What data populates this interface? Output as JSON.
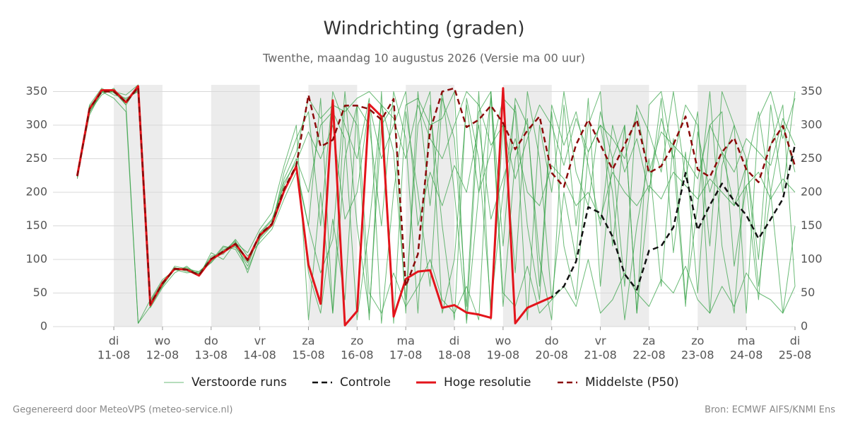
{
  "chart_data": {
    "type": "line",
    "title": "Windrichting (graden)",
    "subtitle": "Twenthe, maandag 10 augustus 2026 (Versie ma 00 uur)",
    "footer": "Gegenereerd door MeteoVPS (meteo-service.nl)",
    "source": "Bron: ECMWF AIFS/KNMI Ens",
    "xlim": [
      -0.25,
      15
    ],
    "xticks": [
      {
        "value": 1,
        "label": "11-08",
        "weekday": "di"
      },
      {
        "value": 2,
        "label": "12-08",
        "weekday": "wo"
      },
      {
        "value": 3,
        "label": "13-08",
        "weekday": "do"
      },
      {
        "value": 4,
        "label": "14-08",
        "weekday": "vr"
      },
      {
        "value": 5,
        "label": "15-08",
        "weekday": "za"
      },
      {
        "value": 6,
        "label": "16-08",
        "weekday": "zo"
      },
      {
        "value": 7,
        "label": "17-08",
        "weekday": "ma"
      },
      {
        "value": 8,
        "label": "18-08",
        "weekday": "di"
      },
      {
        "value": 9,
        "label": "19-08",
        "weekday": "wo"
      },
      {
        "value": 10,
        "label": "20-08",
        "weekday": "do"
      },
      {
        "value": 11,
        "label": "21-08",
        "weekday": "vr"
      },
      {
        "value": 12,
        "label": "22-08",
        "weekday": "za"
      },
      {
        "value": 13,
        "label": "23-08",
        "weekday": "zo"
      },
      {
        "value": 14,
        "label": "24-08",
        "weekday": "ma"
      },
      {
        "value": 15,
        "label": "25-08",
        "weekday": "di"
      }
    ],
    "ylim": [
      0,
      360
    ],
    "yticks": [
      0,
      50,
      100,
      150,
      200,
      250,
      300,
      350
    ],
    "y2ticks": [
      0,
      50,
      100,
      150,
      200,
      250,
      300,
      350
    ],
    "grid": true,
    "legend": "bottom",
    "shade_alternate_days": true,
    "x": [
      0.25,
      0.5,
      0.75,
      1,
      1.25,
      1.5,
      1.75,
      2,
      2.25,
      2.5,
      2.75,
      3,
      3.25,
      3.5,
      3.75,
      4,
      4.25,
      4.5,
      4.75,
      5,
      5.25,
      5.5,
      5.75,
      6,
      6.25,
      6.5,
      6.75,
      7,
      7.25,
      7.5,
      7.75,
      8,
      8.25,
      8.5,
      8.75,
      9,
      9.25,
      9.5,
      9.75,
      10,
      10.25,
      10.5,
      10.75,
      11,
      11.25,
      11.5,
      11.75,
      12,
      12.25,
      12.5,
      12.75,
      13,
      13.25,
      13.5,
      13.75,
      14,
      14.25,
      14.5,
      14.75,
      15
    ],
    "series": [
      {
        "name": "Verstoorde runs",
        "color": "#2e9e3e",
        "dash": false,
        "width": 1,
        "opacity": 0.7,
        "members": [
          [
            220,
            330,
            355,
            345,
            340,
            350,
            35,
            60,
            88,
            82,
            80,
            95,
            115,
            120,
            90,
            140,
            160,
            210,
            250,
            200,
            300,
            320,
            280,
            10,
            150,
            330,
            260,
            40,
            300,
            350,
            20,
            100,
            330,
            200,
            340,
            30,
            250,
            310,
            60,
            330,
            270,
            320,
            240,
            150,
            300,
            230,
            280,
            200,
            310,
            250,
            30,
            290,
            200,
            260,
            180,
            240,
            320,
            200,
            300,
            230
          ],
          [
            230,
            320,
            345,
            355,
            330,
            5,
            40,
            70,
            84,
            88,
            78,
            105,
            108,
            130,
            105,
            125,
            145,
            190,
            230,
            150,
            340,
            20,
            330,
            300,
            10,
            350,
            5,
            320,
            200,
            60,
            340,
            280,
            30,
            350,
            10,
            300,
            80,
            350,
            250,
            40,
            200,
            100,
            340,
            60,
            250,
            300,
            20,
            200,
            340,
            110,
            260,
            50,
            300,
            320,
            90,
            210,
            40,
            270,
            330,
            60
          ],
          [
            222,
            315,
            350,
            340,
            320,
            5,
            30,
            62,
            90,
            86,
            82,
            98,
            120,
            115,
            85,
            130,
            150,
            230,
            280,
            320,
            150,
            350,
            300,
            250,
            340,
            5,
            200,
            330,
            340,
            300,
            310,
            350,
            5,
            200,
            260,
            340,
            320,
            10,
            300,
            200,
            350,
            230,
            180,
            320,
            250,
            60,
            330,
            290,
            230,
            350,
            220,
            320,
            20,
            240,
            300,
            250,
            100,
            330,
            200,
            350
          ],
          [
            228,
            328,
            350,
            350,
            345,
            360,
            28,
            58,
            80,
            90,
            75,
            110,
            100,
            125,
            110,
            145,
            170,
            240,
            300,
            10,
            200,
            20,
            250,
            330,
            300,
            150,
            350,
            280,
            20,
            330,
            150,
            10,
            340,
            250,
            30,
            200,
            330,
            150,
            40,
            320,
            120,
            40,
            260,
            300,
            200,
            10,
            150,
            250,
            60,
            280,
            40,
            180,
            350,
            120,
            20,
            250,
            60,
            200,
            20,
            150
          ],
          [
            225,
            322,
            348,
            352,
            338,
            352,
            38,
            67,
            86,
            84,
            79,
            102,
            112,
            128,
            80,
            132,
            155,
            220,
            260,
            340,
            310,
            330,
            320,
            340,
            350,
            330,
            310,
            250,
            330,
            280,
            250,
            300,
            350,
            330,
            270,
            300,
            220,
            280,
            330,
            300,
            240,
            310,
            260,
            300,
            280,
            250,
            320,
            230,
            290,
            270,
            250,
            220,
            300,
            260,
            230,
            280,
            260,
            240,
            310,
            270
          ],
          [
            226,
            318,
            352,
            348,
            335,
            355,
            33,
            64,
            85,
            80,
            82,
            96,
            118,
            118,
            95,
            138,
            158,
            200,
            240,
            80,
            20,
            160,
            40,
            330,
            50,
            20,
            80,
            30,
            60,
            100,
            40,
            20,
            60,
            10,
            350,
            50,
            30,
            90,
            20,
            40,
            60,
            30,
            100,
            20,
            40,
            80,
            50,
            30,
            70,
            50,
            90,
            40,
            20,
            60,
            30,
            80,
            50,
            40,
            20,
            60
          ],
          [
            224,
            326,
            350,
            350,
            330,
            358,
            36,
            63,
            87,
            86,
            77,
            100,
            110,
            126,
            100,
            134,
            150,
            215,
            245,
            290,
            250,
            300,
            160,
            200,
            330,
            250,
            300,
            350,
            150,
            230,
            180,
            240,
            200,
            300,
            160,
            220,
            280,
            200,
            180,
            240,
            220,
            180,
            200,
            160,
            230,
            200,
            180,
            210,
            190,
            230,
            210,
            190,
            220,
            200,
            180,
            210,
            230,
            190,
            220,
            200
          ],
          [
            224,
            325,
            353,
            350,
            333,
            357,
            30,
            61,
            85,
            85,
            76,
            99,
            113,
            124,
            97,
            137,
            152,
            205,
            238,
            150,
            80,
            130,
            350,
            150,
            20,
            300,
            330,
            20,
            350,
            180,
            350,
            200,
            10,
            320,
            350,
            120,
            340,
            300,
            100,
            10,
            330,
            150,
            300,
            350,
            120,
            300,
            20,
            330,
            350,
            250,
            330,
            300,
            120,
            350,
            300,
            20,
            310,
            350,
            280,
            340
          ]
        ]
      },
      {
        "name": "Controle",
        "color": "#111111",
        "dash": true,
        "width": 2.5,
        "opacity": 1,
        "values": [
          null,
          null,
          null,
          null,
          null,
          null,
          null,
          null,
          null,
          null,
          null,
          null,
          null,
          null,
          null,
          null,
          null,
          null,
          null,
          null,
          null,
          null,
          null,
          null,
          null,
          null,
          null,
          null,
          null,
          null,
          null,
          null,
          null,
          null,
          null,
          null,
          null,
          null,
          36,
          44,
          60,
          97,
          178,
          169,
          134,
          78,
          55,
          113,
          120,
          148,
          229,
          144,
          181,
          213,
          187,
          166,
          131,
          160,
          190,
          271
        ]
      },
      {
        "name": "Hoge resolutie",
        "color": "#e3141b",
        "dash": false,
        "width": 3,
        "opacity": 1,
        "values": [
          225,
          324,
          352,
          352,
          334,
          358,
          32,
          65,
          86,
          85,
          76,
          100,
          111,
          123,
          99,
          136,
          152,
          202,
          239,
          92,
          34,
          337,
          2,
          23,
          331,
          313,
          15,
          71,
          82,
          84,
          28,
          32,
          21,
          18,
          13,
          355,
          5,
          28,
          36,
          44,
          null,
          null,
          null,
          null,
          null,
          null,
          null,
          null,
          null,
          null,
          null,
          null,
          null,
          null,
          null,
          null,
          null,
          null,
          null,
          null
        ]
      },
      {
        "name": "Middelste (P50)",
        "color": "#8b0a0a",
        "dash": true,
        "width": 2.5,
        "opacity": 1,
        "values": [
          224,
          324,
          350,
          350,
          334,
          356,
          34,
          64,
          86,
          85,
          77,
          101,
          112,
          123,
          99,
          137,
          153,
          205,
          240,
          345,
          268,
          278,
          329,
          329,
          324,
          308,
          339,
          60,
          108,
          292,
          350,
          355,
          297,
          308,
          329,
          303,
          264,
          292,
          313,
          229,
          208,
          271,
          308,
          271,
          234,
          271,
          308,
          229,
          239,
          271,
          313,
          234,
          223,
          260,
          281,
          234,
          215,
          271,
          299,
          239
        ]
      }
    ]
  }
}
